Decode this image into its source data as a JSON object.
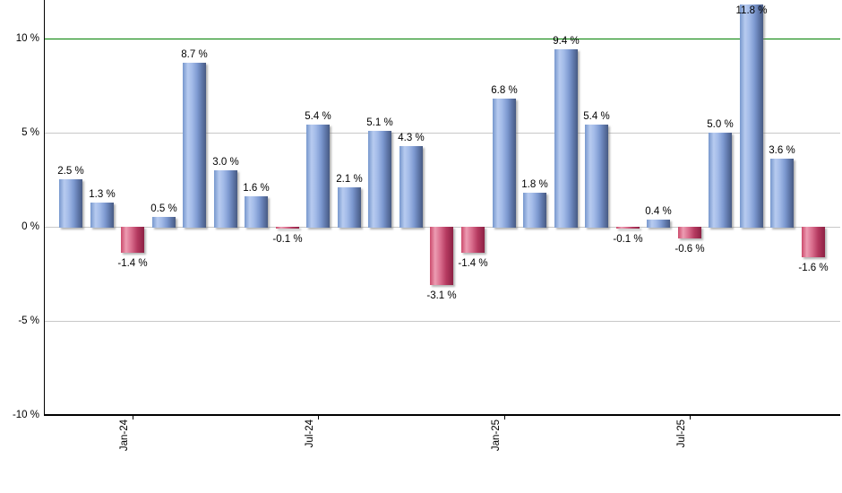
{
  "chart_data": {
    "type": "bar",
    "title": "",
    "unit": "%",
    "y_axis": {
      "tick_values": [
        10,
        5,
        0,
        -5,
        -10
      ],
      "tick_labels": [
        "10 %",
        "5 %",
        "0 %",
        "-5 %",
        "-10 %"
      ],
      "ylim": [
        -10,
        12
      ],
      "grid": true
    },
    "x_axis": {
      "ticks": [
        {
          "label": "Jan-24",
          "bar_index": 2
        },
        {
          "label": "Jul-24",
          "bar_index": 8
        },
        {
          "label": "Jan-25",
          "bar_index": 14
        },
        {
          "label": "Jul-25",
          "bar_index": 20
        }
      ]
    },
    "reference_line": {
      "value": 10
    },
    "legend": false,
    "bars": [
      {
        "value": 2.5,
        "label": "2.5 %"
      },
      {
        "value": 1.3,
        "label": "1.3 %"
      },
      {
        "value": -1.4,
        "label": "-1.4 %"
      },
      {
        "value": 0.5,
        "label": "0.5 %"
      },
      {
        "value": 8.7,
        "label": "8.7 %"
      },
      {
        "value": 3.0,
        "label": "3.0 %"
      },
      {
        "value": 1.6,
        "label": "1.6 %"
      },
      {
        "value": -0.1,
        "label": "-0.1 %"
      },
      {
        "value": 5.4,
        "label": "5.4 %"
      },
      {
        "value": 2.1,
        "label": "2.1 %"
      },
      {
        "value": 5.1,
        "label": "5.1 %"
      },
      {
        "value": 4.3,
        "label": "4.3 %"
      },
      {
        "value": -3.1,
        "label": "-3.1 %"
      },
      {
        "value": -1.4,
        "label": "-1.4 %"
      },
      {
        "value": 6.8,
        "label": "6.8 %"
      },
      {
        "value": 1.8,
        "label": "1.8 %"
      },
      {
        "value": 9.4,
        "label": "9.4 %"
      },
      {
        "value": 5.4,
        "label": "5.4 %"
      },
      {
        "value": -0.1,
        "label": "-0.1 %"
      },
      {
        "value": 0.4,
        "label": "0.4 %"
      },
      {
        "value": -0.6,
        "label": "-0.6 %"
      },
      {
        "value": 5.0,
        "label": "5.0 %"
      },
      {
        "value": 11.8,
        "label": "11.8 %"
      },
      {
        "value": 3.6,
        "label": "3.6 %"
      },
      {
        "value": -1.6,
        "label": "-1.6 %"
      }
    ],
    "colors": {
      "positive_gradient": [
        "#7797cd",
        "#b7cbf0",
        "#a3bbe8",
        "#7f9bd2",
        "#5f77aa",
        "#475a82"
      ],
      "negative_gradient": [
        "#cc4a6c",
        "#ec9cb2",
        "#d96d8d",
        "#b53a60",
        "#8c2144"
      ],
      "gridline": "#c8c8c8",
      "reference": "#008000",
      "axis": "#000000",
      "label_text": "#000000"
    }
  }
}
